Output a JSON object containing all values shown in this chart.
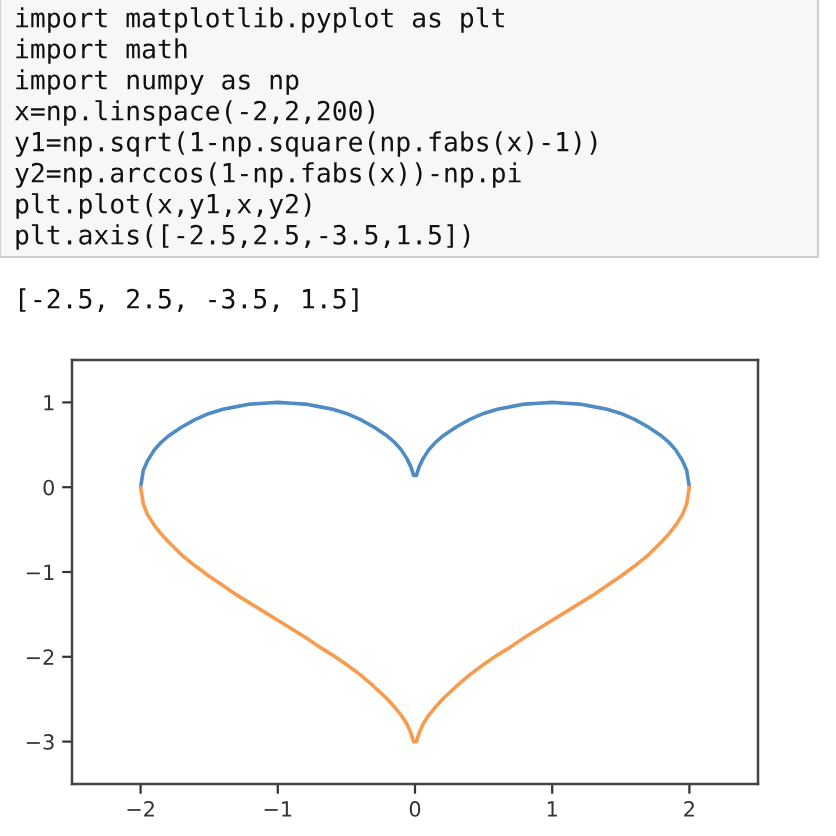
{
  "chart_data": {
    "type": "line",
    "x": [
      -2,
      -1.98,
      -1.95,
      -1.9,
      -1.85,
      -1.8,
      -1.7,
      -1.6,
      -1.5,
      -1.4,
      -1.3,
      -1.2,
      -1.1,
      -1.0,
      -0.9,
      -0.8,
      -0.7,
      -0.6,
      -0.5,
      -0.4,
      -0.3,
      -0.2,
      -0.15,
      -0.1,
      -0.06,
      -0.03,
      -0.01,
      0.01,
      0.03,
      0.06,
      0.1,
      0.15,
      0.2,
      0.3,
      0.4,
      0.5,
      0.6,
      0.7,
      0.8,
      0.9,
      1.0,
      1.1,
      1.2,
      1.3,
      1.4,
      1.5,
      1.6,
      1.7,
      1.8,
      1.85,
      1.9,
      1.95,
      1.98,
      2
    ],
    "series": [
      {
        "color": "#4f8cc4",
        "values": [
          0,
          0.2,
          0.31,
          0.44,
          0.53,
          0.6,
          0.71,
          0.8,
          0.87,
          0.92,
          0.95,
          0.98,
          0.99,
          1.0,
          0.99,
          0.98,
          0.95,
          0.92,
          0.87,
          0.8,
          0.71,
          0.6,
          0.53,
          0.44,
          0.34,
          0.24,
          0.14,
          0.14,
          0.24,
          0.34,
          0.44,
          0.53,
          0.6,
          0.71,
          0.8,
          0.87,
          0.92,
          0.95,
          0.98,
          0.99,
          1.0,
          0.99,
          0.98,
          0.95,
          0.92,
          0.87,
          0.8,
          0.71,
          0.6,
          0.53,
          0.44,
          0.31,
          0.2,
          0
        ]
      },
      {
        "color": "#f79b4e",
        "values": [
          0,
          -0.2,
          -0.32,
          -0.45,
          -0.55,
          -0.64,
          -0.8,
          -0.93,
          -1.05,
          -1.16,
          -1.27,
          -1.37,
          -1.47,
          -1.57,
          -1.67,
          -1.77,
          -1.88,
          -1.98,
          -2.09,
          -2.21,
          -2.35,
          -2.5,
          -2.59,
          -2.69,
          -2.79,
          -2.9,
          -3.0,
          -3.0,
          -2.9,
          -2.79,
          -2.69,
          -2.59,
          -2.5,
          -2.35,
          -2.21,
          -2.09,
          -1.98,
          -1.88,
          -1.77,
          -1.67,
          -1.57,
          -1.47,
          -1.37,
          -1.27,
          -1.16,
          -1.05,
          -0.93,
          -0.8,
          -0.64,
          -0.55,
          -0.45,
          -0.32,
          -0.2,
          0
        ]
      }
    ],
    "xlim": [
      -2.5,
      2.5
    ],
    "ylim": [
      -3.5,
      1.5
    ],
    "xticks": [
      {
        "value": -2,
        "label": "−2"
      },
      {
        "value": -1,
        "label": "−1"
      },
      0,
      1,
      2
    ],
    "yticks": [
      {
        "value": -3,
        "label": "−3"
      },
      {
        "value": -2,
        "label": "−2"
      },
      {
        "value": -1,
        "label": "−1"
      },
      0,
      1
    ],
    "grid": false,
    "line_style": "solid",
    "annotations": [
      "import matplotlib.pyplot as plt",
      "import math",
      "import numpy as np",
      "x=np.linspace(-2,2,200)",
      "y1=np.sqrt(1-np.square(np.fabs(x)-1))",
      "y2=np.arccos(1-np.fabs(x))-np.pi",
      "plt.plot(x,y1,x,y2)",
      "plt.axis([-2.5,2.5,-3.5,1.5])",
      "[-2.5, 2.5, -3.5, 1.5]"
    ]
  }
}
